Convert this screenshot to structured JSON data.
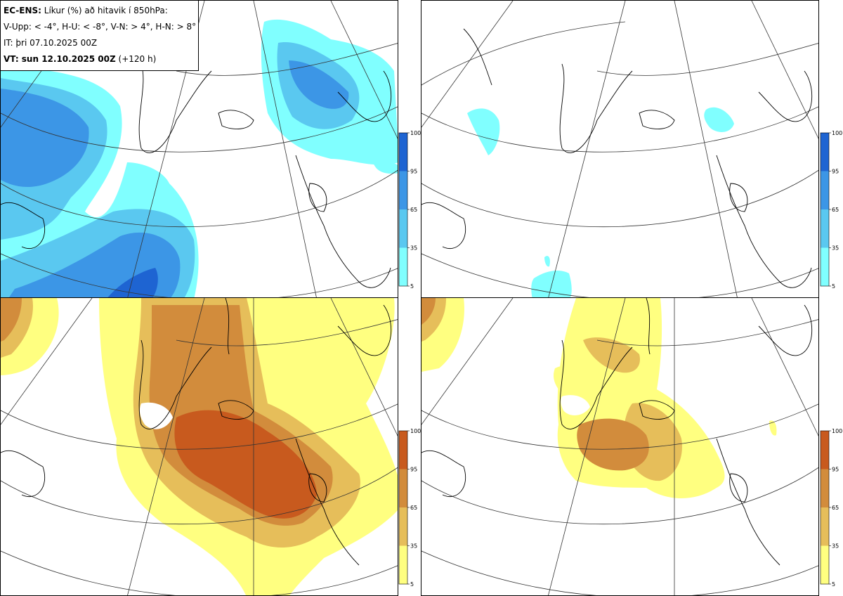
{
  "title": {
    "line1_bold": "EC-ENS:",
    "line1_rest": "Líkur (%) að hitavik í 850hPa:",
    "line2": "V-Upp: < -4°, H-U: < -8°, V-N: > 4°, H-N: > 8°",
    "line3": "IT: þri 07.10.2025 00Z",
    "line4_bold": "VT: sun 12.10.2025 00Z",
    "line4_rest": "(+120 h)"
  },
  "legend_ticks": [
    "100",
    "95",
    "65",
    "35",
    "5"
  ],
  "colors": {
    "cold": [
      "#80ffff",
      "#5ac8f0",
      "#3c96e6",
      "#1e64d2"
    ],
    "warm": [
      "#ffff80",
      "#e6be5a",
      "#d28c3c",
      "#c85a1e"
    ]
  },
  "panels": [
    {
      "name": "upper-left",
      "scheme": "cold",
      "label": "V-Upp"
    },
    {
      "name": "upper-right",
      "scheme": "cold",
      "label": "H-U"
    },
    {
      "name": "lower-left",
      "scheme": "warm",
      "label": "V-N"
    },
    {
      "name": "lower-right",
      "scheme": "warm",
      "label": "H-N"
    }
  ]
}
